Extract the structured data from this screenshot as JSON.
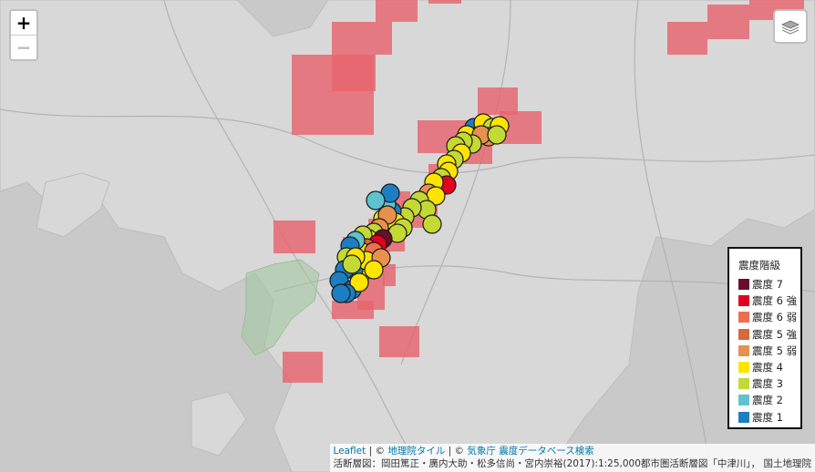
{
  "map": {
    "zoom_in_label": "+",
    "zoom_out_label": "−",
    "colors": {
      "basemap": "#c9c9c9",
      "mesh": "#e8646e",
      "marker_outline": "#1a1a1a"
    },
    "mesh_cells": [
      {
        "grid": "A1"
      },
      {
        "grid": "A2"
      },
      {
        "grid": "A3"
      },
      {
        "grid": "A4"
      },
      {
        "grid": "A5"
      },
      {
        "grid": "A6"
      },
      {
        "grid": "A7"
      },
      {
        "grid": "B1"
      },
      {
        "grid": "B2"
      },
      {
        "grid": "B3"
      },
      {
        "grid": "B4"
      },
      {
        "grid": "B5"
      },
      {
        "grid": "B6"
      },
      {
        "grid": "B7"
      },
      {
        "grid": "B8"
      },
      {
        "grid": "C1"
      },
      {
        "grid": "C2"
      },
      {
        "grid": "C3"
      },
      {
        "grid": "C4"
      },
      {
        "grid": "C5"
      },
      {
        "grid": "C6"
      },
      {
        "grid": "C7"
      },
      {
        "grid": "C8"
      }
    ]
  },
  "legend": {
    "title": "震度階級",
    "items": [
      {
        "label": "震度 7",
        "color": "#6b0d2a"
      },
      {
        "label": "震度 6 強",
        "color": "#e3001f"
      },
      {
        "label": "震度 6 弱",
        "color": "#ee6e51"
      },
      {
        "label": "震度 5 強",
        "color": "#d7683a"
      },
      {
        "label": "震度 5 弱",
        "color": "#e8904e"
      },
      {
        "label": "震度 4",
        "color": "#ffe400"
      },
      {
        "label": "震度 3",
        "color": "#c3d934"
      },
      {
        "label": "震度 2",
        "color": "#5ec2cf"
      },
      {
        "label": "震度 1",
        "color": "#1b7fc1"
      }
    ]
  },
  "attribution": {
    "leaflet": "Leaflet",
    "sep1": " | © ",
    "gsi": "地理院タイル",
    "sep2": " | © ",
    "jma": "気象庁 震度データベース検索",
    "line2": "活断層図：岡田篤正・廣内大助・松多信尚・宮内崇裕(2017):1:25,000都市圏活断層図「中津川」， 国土地理院"
  }
}
